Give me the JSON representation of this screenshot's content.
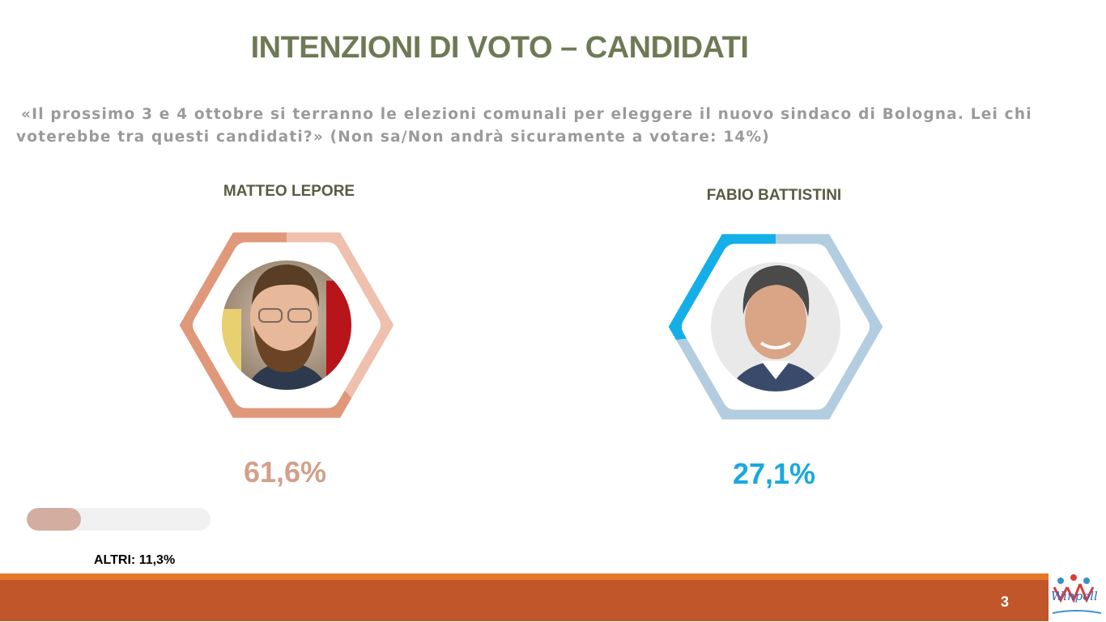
{
  "slide": {
    "title": "INTENZIONI DI VOTO – CANDIDATI",
    "question_line1": "«Il prossimo 3 e 4 ottobre si terranno le elezioni comunali per eleggere il nuovo sindaco di Bologna. Lei chi",
    "question_line2": "voterebbe tra questi candidati?» (Non sa/Non andrà sicuramente a votare: 14%)",
    "page_number": "3",
    "logo_text": "Winpoll"
  },
  "colors": {
    "title": "#6e7a55",
    "lepore_main": "#e0987a",
    "lepore_light": "#efc0ad",
    "lepore_text": "#d3a08a",
    "battistini_main": "#14aee8",
    "battistini_light": "#b3cde0",
    "battistini_text": "#19a8e0",
    "others_bar": "#d3ada0",
    "footer": "#c0562a",
    "footer_line": "#e2782a"
  },
  "chart_data": [
    {
      "type": "pie",
      "categories": [
        "MATTEO LEPORE"
      ],
      "values": [
        61.6
      ],
      "label": "61,6%",
      "photo": "candidate-photo-lepore"
    },
    {
      "type": "pie",
      "categories": [
        "FABIO BATTISTINI"
      ],
      "values": [
        27.1
      ],
      "label": "27,1%",
      "photo": "candidate-photo-battistini"
    },
    {
      "type": "bar",
      "categories": [
        "ALTRI"
      ],
      "values": [
        11.3
      ],
      "label": "ALTRI: 11,3%",
      "ylim": [
        0,
        100
      ]
    }
  ]
}
